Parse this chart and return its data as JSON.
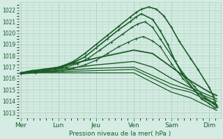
{
  "bg_color": "#d4ece3",
  "grid_color": "#aecfbc",
  "line_color": "#1a5c28",
  "tick_color": "#1a5c28",
  "xlabel": "Pression niveau de la mer( hPa )",
  "xlabel_color": "#1a5c28",
  "ylim": [
    1012.5,
    1022.7
  ],
  "yticks": [
    1013,
    1014,
    1015,
    1016,
    1017,
    1018,
    1019,
    1020,
    1021,
    1022
  ],
  "day_labels": [
    "Mer",
    "Lun",
    "Jeu",
    "Ven",
    "Sam",
    "Dim"
  ],
  "day_positions": [
    0,
    1,
    2,
    3,
    4,
    5
  ],
  "xlim": [
    -0.05,
    5.3
  ],
  "lines": [
    {
      "x": [
        0.0,
        0.3,
        0.6,
        0.9,
        1.1,
        1.4,
        1.7,
        2.0,
        2.3,
        2.6,
        2.9,
        3.05,
        3.2,
        3.4,
        3.6,
        3.8,
        4.0,
        4.2,
        4.5,
        4.7,
        5.0,
        5.1,
        5.2
      ],
      "y": [
        1016.5,
        1016.7,
        1016.8,
        1016.9,
        1017.1,
        1017.5,
        1018.2,
        1019.0,
        1019.8,
        1020.6,
        1021.4,
        1021.8,
        1022.1,
        1022.3,
        1022.1,
        1021.5,
        1020.5,
        1019.3,
        1017.8,
        1016.8,
        1015.2,
        1014.5,
        1013.5
      ],
      "lw": 1.2,
      "marker": "+"
    },
    {
      "x": [
        0.0,
        0.3,
        0.6,
        0.9,
        1.1,
        1.4,
        1.7,
        2.0,
        2.3,
        2.6,
        2.9,
        3.05,
        3.2,
        3.5,
        3.7,
        3.9,
        4.1,
        4.3,
        4.6,
        4.8,
        5.0,
        5.15
      ],
      "y": [
        1016.5,
        1016.6,
        1016.8,
        1016.9,
        1017.0,
        1017.4,
        1017.9,
        1018.7,
        1019.5,
        1020.3,
        1021.0,
        1021.4,
        1021.7,
        1021.2,
        1020.2,
        1019.0,
        1017.5,
        1016.3,
        1015.0,
        1014.2,
        1013.8,
        1013.4
      ],
      "lw": 1.2,
      "marker": "+"
    },
    {
      "x": [
        0.0,
        0.3,
        0.6,
        0.9,
        1.2,
        1.5,
        1.8,
        2.1,
        2.4,
        2.7,
        2.95,
        3.1,
        3.3,
        3.5,
        3.7,
        4.0,
        4.3,
        4.6,
        4.9,
        5.1,
        5.2
      ],
      "y": [
        1016.4,
        1016.6,
        1016.7,
        1016.8,
        1017.0,
        1017.3,
        1017.8,
        1018.5,
        1019.2,
        1019.9,
        1020.5,
        1020.8,
        1021.0,
        1020.5,
        1019.5,
        1018.0,
        1016.5,
        1015.3,
        1014.3,
        1013.9,
        1013.6
      ],
      "lw": 1.0,
      "marker": "+"
    },
    {
      "x": [
        0.0,
        0.4,
        0.8,
        1.1,
        1.4,
        1.7,
        2.0,
        2.3,
        2.6,
        2.85,
        3.05,
        3.25,
        3.5,
        3.7,
        4.0,
        4.3,
        4.6,
        4.9,
        5.1,
        5.2
      ],
      "y": [
        1016.4,
        1016.5,
        1016.6,
        1016.7,
        1016.9,
        1017.2,
        1017.6,
        1018.2,
        1018.8,
        1019.2,
        1019.5,
        1019.7,
        1019.3,
        1018.8,
        1017.3,
        1016.0,
        1015.0,
        1014.2,
        1013.8,
        1013.5
      ],
      "lw": 0.9,
      "marker": "+"
    },
    {
      "x": [
        0.0,
        1.0,
        2.0,
        3.0,
        3.5,
        4.0,
        4.5,
        5.0,
        5.2
      ],
      "y": [
        1016.5,
        1017.0,
        1017.8,
        1018.5,
        1018.2,
        1017.0,
        1015.8,
        1014.8,
        1014.5
      ],
      "lw": 1.3,
      "marker": null
    },
    {
      "x": [
        0.0,
        1.0,
        2.0,
        3.0,
        3.5,
        4.0,
        4.5,
        5.0,
        5.2
      ],
      "y": [
        1016.5,
        1016.8,
        1017.2,
        1017.5,
        1017.0,
        1016.0,
        1015.2,
        1014.5,
        1014.2
      ],
      "lw": 1.0,
      "marker": null
    },
    {
      "x": [
        0.0,
        1.0,
        2.0,
        3.0,
        4.0,
        4.5,
        5.0,
        5.2
      ],
      "y": [
        1016.5,
        1016.7,
        1016.9,
        1017.0,
        1015.5,
        1015.0,
        1014.3,
        1014.0
      ],
      "lw": 0.9,
      "marker": null
    },
    {
      "x": [
        0.0,
        1.0,
        2.0,
        3.0,
        4.0,
        4.5,
        5.0,
        5.2
      ],
      "y": [
        1016.5,
        1016.6,
        1016.7,
        1016.8,
        1015.2,
        1014.8,
        1014.0,
        1013.7
      ],
      "lw": 0.9,
      "marker": null
    },
    {
      "x": [
        0.0,
        1.0,
        2.0,
        3.0,
        4.0,
        4.5,
        5.0,
        5.2
      ],
      "y": [
        1016.5,
        1016.5,
        1016.5,
        1016.5,
        1014.8,
        1014.3,
        1013.5,
        1013.2
      ],
      "lw": 0.9,
      "marker": null
    }
  ],
  "figsize": [
    3.2,
    2.0
  ],
  "dpi": 100
}
